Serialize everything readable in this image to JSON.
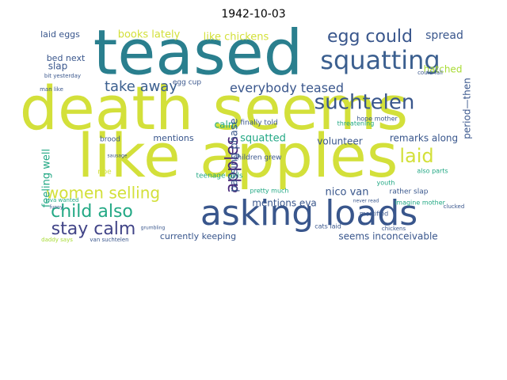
{
  "figure": {
    "title": "1942-10-03"
  },
  "palette": {
    "teal": "#2a7f8e",
    "yellow": "#d3e03a",
    "navy": "#39568c",
    "blue": "#3b5f8f",
    "purple": "#482879",
    "green": "#6ccd5a",
    "lime": "#a8db34",
    "seagreen": "#22a884",
    "cyan": "#1f988b",
    "darkpurple": "#414487"
  },
  "words": [
    {
      "text": "teased",
      "color": "teal"
    },
    {
      "text": "death seems",
      "color": "yellow"
    },
    {
      "text": "like apples",
      "color": "yellow"
    },
    {
      "text": "asking loads",
      "color": "navy"
    },
    {
      "text": "squatting",
      "color": "blue"
    },
    {
      "text": "egg could",
      "color": "navy"
    },
    {
      "text": "suchtelen",
      "color": "navy"
    },
    {
      "text": "child also",
      "color": "seagreen"
    },
    {
      "text": "women selling",
      "color": "yellow"
    },
    {
      "text": "stay calm",
      "color": "darkpurple"
    },
    {
      "text": "apples",
      "color": "purple"
    },
    {
      "text": "laid",
      "color": "yellow"
    },
    {
      "text": "take away",
      "color": "blue"
    },
    {
      "text": "everybody teased",
      "color": "navy"
    },
    {
      "text": "spread",
      "color": "navy"
    },
    {
      "text": "books lately",
      "color": "yellow"
    },
    {
      "text": "like chickens",
      "color": "yellow"
    },
    {
      "text": "laid eggs",
      "color": "navy"
    },
    {
      "text": "bed next",
      "color": "navy"
    },
    {
      "text": "slap",
      "color": "navy"
    },
    {
      "text": "hatched",
      "color": "lime"
    },
    {
      "text": "remarks along",
      "color": "navy"
    },
    {
      "text": "squatted",
      "color": "seagreen"
    },
    {
      "text": "volunteer",
      "color": "navy"
    },
    {
      "text": "mentions",
      "color": "navy"
    },
    {
      "text": "calm",
      "color": "seagreen"
    },
    {
      "text": "feeling well",
      "color": "seagreen"
    },
    {
      "text": "passing phase",
      "color": "navy"
    },
    {
      "text": "period—then",
      "color": "navy"
    },
    {
      "text": "nico van",
      "color": "navy"
    },
    {
      "text": "mentions eva",
      "color": "navy"
    },
    {
      "text": "currently keeping",
      "color": "navy"
    },
    {
      "text": "seems inconceivable",
      "color": "navy"
    },
    {
      "text": "finally told",
      "color": "navy"
    },
    {
      "text": "children grew",
      "color": "navy"
    },
    {
      "text": "teenage girls",
      "color": "seagreen"
    },
    {
      "text": "pretty much",
      "color": "seagreen"
    },
    {
      "text": "rather slap",
      "color": "navy"
    },
    {
      "text": "also parts",
      "color": "seagreen"
    },
    {
      "text": "imagine mother",
      "color": "seagreen"
    },
    {
      "text": "youth",
      "color": "seagreen"
    },
    {
      "text": "brood",
      "color": "navy"
    },
    {
      "text": "ripe",
      "color": "yellow"
    },
    {
      "text": "cats laid",
      "color": "navy"
    },
    {
      "text": "chickens",
      "color": "navy"
    },
    {
      "text": "mortified",
      "color": "navy"
    },
    {
      "text": "clucked",
      "color": "navy"
    },
    {
      "text": "hope mother",
      "color": "navy"
    },
    {
      "text": "threatening",
      "color": "seagreen"
    },
    {
      "text": "could fall",
      "color": "navy"
    },
    {
      "text": "daddy says",
      "color": "lime"
    },
    {
      "text": "van suchtelen",
      "color": "navy"
    },
    {
      "text": "sausage",
      "color": "navy"
    },
    {
      "text": "never read",
      "color": "navy"
    },
    {
      "text": "egg cup",
      "color": "navy"
    },
    {
      "text": "bit yesterday",
      "color": "navy"
    },
    {
      "text": "man like",
      "color": "navy"
    },
    {
      "text": "eva wanted",
      "color": "seagreen"
    },
    {
      "text": "funny",
      "color": "navy"
    },
    {
      "text": "grumbling",
      "color": "navy"
    }
  ]
}
